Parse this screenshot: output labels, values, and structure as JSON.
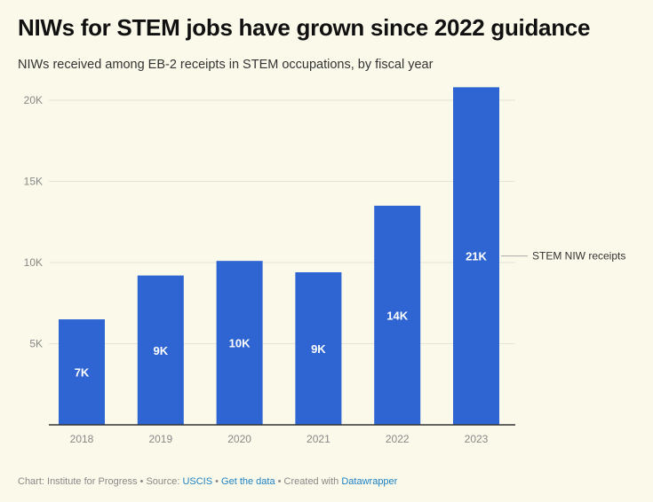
{
  "chart_data": {
    "type": "bar",
    "title": "NIWs for STEM jobs have grown since 2022 guidance",
    "subtitle": "NIWs received among EB-2 receipts in STEM occupations, by fiscal year",
    "categories": [
      "2018",
      "2019",
      "2020",
      "2021",
      "2022",
      "2023"
    ],
    "values": [
      6500,
      9200,
      10100,
      9400,
      13500,
      20800
    ],
    "data_labels": [
      "7K",
      "9K",
      "10K",
      "9K",
      "14K",
      "21K"
    ],
    "series_name": "STEM NIW receipts",
    "ylim": [
      0,
      21000
    ],
    "yticks": [
      5000,
      10000,
      15000,
      20000
    ],
    "ytick_labels": [
      "5K",
      "10K",
      "15K",
      "20K"
    ],
    "xlabel": "",
    "ylabel": "",
    "grid": true,
    "color": "#2f65d2"
  },
  "footer": {
    "chart_prefix": "Chart: Institute for Progress • Source: ",
    "source_link": "USCIS",
    "sep1": " • ",
    "data_link": "Get the data",
    "sep2": " • Created with ",
    "tool_link": "Datawrapper"
  }
}
